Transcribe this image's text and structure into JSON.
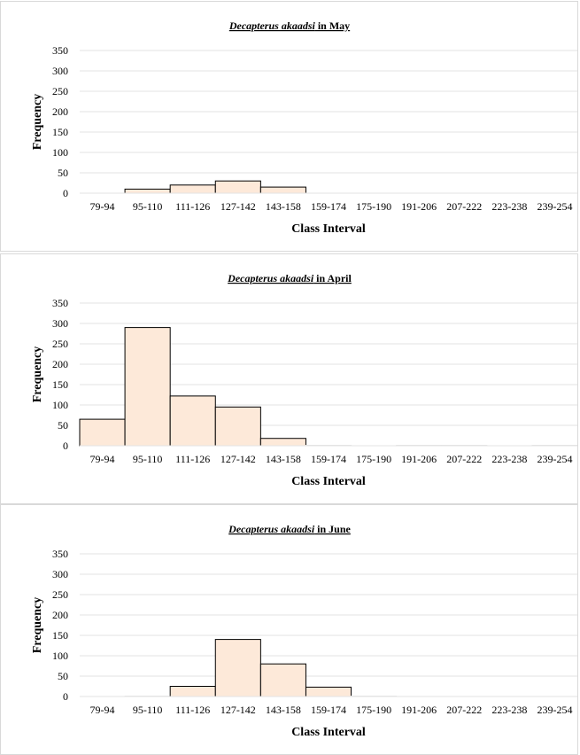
{
  "chart_data": [
    {
      "type": "bar",
      "title": "Decapterus akaadsi in May",
      "title_species": "Decapterus akaadsi",
      "title_suffix": " in May",
      "xlabel": "Class Interval",
      "ylabel": "Frequency",
      "ylim": [
        0,
        350
      ],
      "yticks": [
        0,
        50,
        100,
        150,
        200,
        250,
        300,
        350
      ],
      "grid": true,
      "categories": [
        "79-94",
        "95-110",
        "111-126",
        "127-142",
        "143-158",
        "159-174",
        "175-190",
        "191-206",
        "207-222",
        "223-238",
        "239-254"
      ],
      "values": [
        0,
        10,
        20,
        30,
        15,
        0,
        0,
        0,
        0,
        0,
        0
      ]
    },
    {
      "type": "bar",
      "title": "Decapterus akaadsi in April",
      "title_species": "Decapterus akaadsi",
      "title_suffix": " in April",
      "xlabel": "Class Interval",
      "ylabel": "Frequency",
      "ylim": [
        0,
        350
      ],
      "yticks": [
        0,
        50,
        100,
        150,
        200,
        250,
        300,
        350
      ],
      "grid": true,
      "categories": [
        "79-94",
        "95-110",
        "111-126",
        "127-142",
        "143-158",
        "159-174",
        "175-190",
        "191-206",
        "207-222",
        "223-238",
        "239-254"
      ],
      "values": [
        65,
        290,
        122,
        95,
        18,
        1,
        0,
        1,
        1,
        0,
        1
      ]
    },
    {
      "type": "bar",
      "title": "Decapterus akaadsi in June",
      "title_species": "Decapterus akaadsi",
      "title_suffix": " in June",
      "xlabel": "Class Interval",
      "ylabel": "Frequency",
      "ylim": [
        0,
        350
      ],
      "yticks": [
        0,
        50,
        100,
        150,
        200,
        250,
        300,
        350
      ],
      "grid": true,
      "categories": [
        "79-94",
        "95-110",
        "111-126",
        "127-142",
        "143-158",
        "159-174",
        "175-190",
        "191-206",
        "207-222",
        "223-238",
        "239-254"
      ],
      "values": [
        0,
        1,
        25,
        140,
        80,
        23,
        1,
        0,
        0,
        0,
        0
      ]
    }
  ],
  "colors": {
    "bar_fill": "#fde9d9",
    "bar_stroke": "#000000",
    "grid": "#e3e3e3",
    "panel_border": "#d9d9d9"
  }
}
